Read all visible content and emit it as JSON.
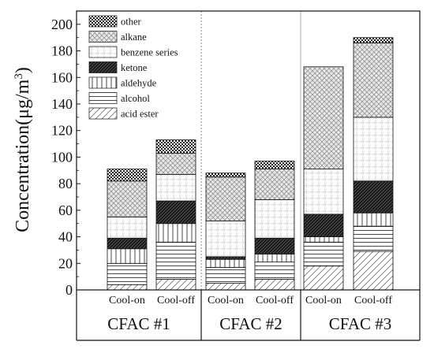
{
  "chart_data": {
    "type": "bar",
    "stacked": true,
    "ylabel": "Concentration(μg/m³)",
    "ylabel_main": "Concentration(μg/m",
    "ylabel_sup": "3",
    "ylabel_close": ")",
    "ylim": [
      0,
      210
    ],
    "yticks": [
      0,
      20,
      40,
      60,
      80,
      100,
      120,
      140,
      160,
      180,
      200
    ],
    "legend_position": "top-left",
    "groups": [
      {
        "label": "CFAC #1",
        "categories": [
          "Cool-on",
          "Cool-off"
        ]
      },
      {
        "label": "CFAC #2",
        "categories": [
          "Cool-on",
          "Cool-off"
        ]
      },
      {
        "label": "CFAC #3",
        "categories": [
          "Cool-on",
          "Cool-off"
        ]
      }
    ],
    "categories": [
      "Cool-on",
      "Cool-off",
      "Cool-on",
      "Cool-off",
      "Cool-on",
      "Cool-off"
    ],
    "series": [
      {
        "name": "acid ester",
        "pattern": "diag-light",
        "values": [
          4,
          8,
          5,
          8,
          18,
          29
        ]
      },
      {
        "name": "alcohol",
        "pattern": "hlines",
        "values": [
          16,
          28,
          12,
          13,
          18,
          19
        ]
      },
      {
        "name": "aldehyde",
        "pattern": "vlines",
        "values": [
          11,
          14,
          6,
          6,
          4,
          10
        ]
      },
      {
        "name": "ketone",
        "pattern": "dense-dark",
        "values": [
          8,
          17,
          2,
          12,
          17,
          24
        ]
      },
      {
        "name": "benzene series",
        "pattern": "grid-dots",
        "values": [
          16,
          20,
          27,
          29,
          34,
          48
        ]
      },
      {
        "name": "alkane",
        "pattern": "cross-hatch",
        "values": [
          27,
          16,
          33,
          23,
          77,
          56
        ]
      },
      {
        "name": "other",
        "pattern": "dark-checker",
        "values": [
          9,
          10,
          3,
          6,
          0,
          4
        ]
      }
    ]
  }
}
